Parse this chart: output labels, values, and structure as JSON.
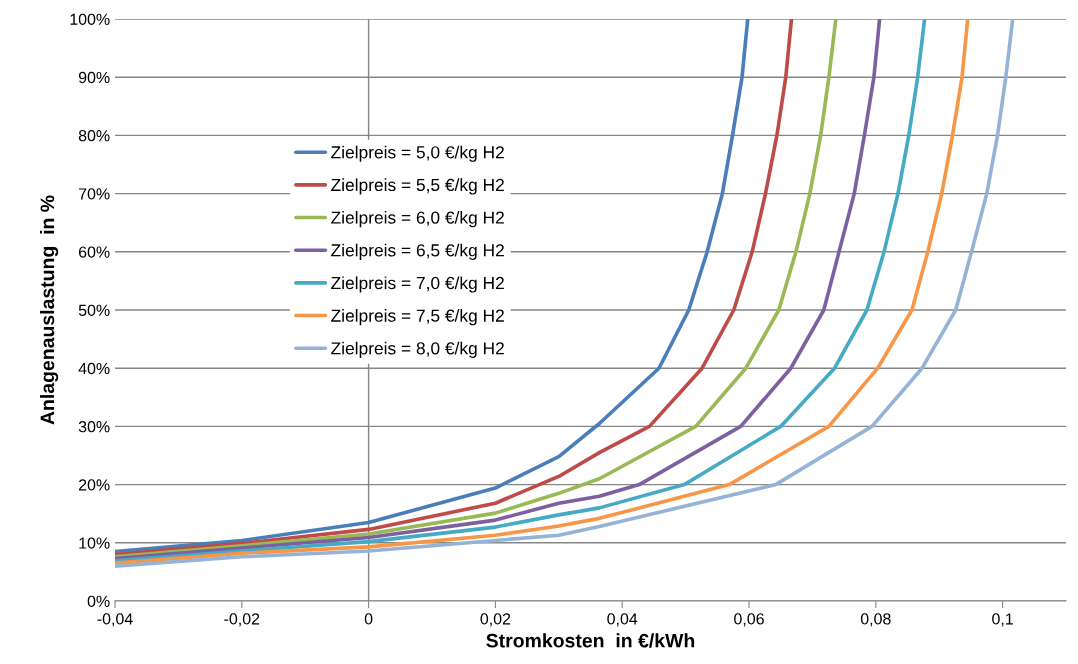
{
  "chart_data": {
    "type": "line",
    "xlabel": "Stromkosten  in €/kWh",
    "ylabel": "Anlagenauslastung  in %",
    "xlim": [
      -0.04,
      0.11
    ],
    "xticks": [
      {
        "value": -0.04,
        "label": "-0,04"
      },
      {
        "value": -0.02,
        "label": "-0,02"
      },
      0,
      {
        "value": 0.02,
        "label": "0,02"
      },
      {
        "value": 0.04,
        "label": "0,04"
      },
      {
        "value": 0.06,
        "label": "0,06"
      },
      {
        "value": 0.08,
        "label": "0,08"
      },
      {
        "value": 0.1,
        "label": "0,1"
      }
    ],
    "ylim": [
      0,
      100
    ],
    "yticks": [
      {
        "value": 0,
        "label": "0%"
      },
      {
        "value": 10,
        "label": "10%"
      },
      {
        "value": 20,
        "label": "20%"
      },
      {
        "value": 30,
        "label": "30%"
      },
      {
        "value": 40,
        "label": "40%"
      },
      {
        "value": 50,
        "label": "50%"
      },
      {
        "value": 60,
        "label": "60%"
      },
      {
        "value": 70,
        "label": "70%"
      },
      {
        "value": 80,
        "label": "80%"
      },
      {
        "value": 90,
        "label": "90%"
      },
      {
        "value": 100,
        "label": "100%"
      }
    ],
    "grid": "y",
    "legend": "center",
    "marker": "none",
    "line_style": "solid",
    "ref_lines": [
      {
        "axis": "x",
        "value": 0,
        "color": "#868686"
      }
    ],
    "series": [
      {
        "name": "Zielpreis = 5,0 €/kg H2",
        "color": "#4a7ebb",
        "x": [
          -0.04,
          -0.02,
          0,
          0.02,
          0.03,
          0.0364,
          0.0458,
          0.0505,
          0.0534,
          0.0558,
          0.0574,
          0.0589,
          0.0598
        ],
        "values": [
          8.5,
          10.4,
          13.5,
          19.4,
          24.8,
          30.5,
          40,
          50,
          60,
          70,
          80,
          90,
          100
        ]
      },
      {
        "name": "Zielpreis = 5,5 €/kg H2",
        "color": "#be4b48",
        "x": [
          -0.04,
          -0.02,
          0,
          0.02,
          0.03,
          0.0364,
          0.0443,
          0.0526,
          0.0576,
          0.0605,
          0.0626,
          0.0644,
          0.0658,
          0.0667
        ],
        "values": [
          8.0,
          9.9,
          12.3,
          16.8,
          21.4,
          25.5,
          30,
          40,
          50,
          60,
          70,
          80,
          90,
          100
        ]
      },
      {
        "name": "Zielpreis = 6,0 €/kg H2",
        "color": "#98b954",
        "x": [
          -0.04,
          -0.02,
          0,
          0.02,
          0.03,
          0.0364,
          0.0516,
          0.0595,
          0.0647,
          0.0674,
          0.0696,
          0.0713,
          0.0726,
          0.0737
        ],
        "values": [
          7.6,
          9.5,
          11.5,
          15.1,
          18.5,
          21,
          30,
          40,
          50,
          60,
          70,
          80,
          90,
          100
        ]
      },
      {
        "name": "Zielpreis = 6,5 €/kg H2",
        "color": "#7d60a0",
        "x": [
          -0.04,
          -0.02,
          0,
          0.02,
          0.03,
          0.0364,
          0.0427,
          0.0587,
          0.0666,
          0.0718,
          0.0742,
          0.0766,
          0.0782,
          0.0797,
          0.0806
        ],
        "values": [
          7.3,
          9.1,
          10.9,
          13.9,
          16.8,
          18,
          20,
          30,
          40,
          50,
          60,
          70,
          80,
          90,
          100
        ]
      },
      {
        "name": "Zielpreis = 7,0 €/kg H2",
        "color": "#46aac5",
        "x": [
          -0.04,
          -0.02,
          0,
          0.02,
          0.03,
          0.0364,
          0.0498,
          0.065,
          0.0735,
          0.0786,
          0.0813,
          0.0835,
          0.0852,
          0.0866,
          0.0877
        ],
        "values": [
          6.9,
          8.6,
          10.2,
          12.7,
          14.8,
          16,
          20,
          30,
          40,
          50,
          60,
          70,
          80,
          90,
          100
        ]
      },
      {
        "name": "Zielpreis = 7,5 €/kg H2",
        "color": "#f79646",
        "x": [
          -0.04,
          -0.02,
          0,
          0.02,
          0.03,
          0.0364,
          0.0569,
          0.0726,
          0.0803,
          0.0857,
          0.0882,
          0.0904,
          0.0921,
          0.0936,
          0.0945
        ],
        "values": [
          6.5,
          8.2,
          9.3,
          11.3,
          12.9,
          14.2,
          20,
          30,
          40,
          50,
          60,
          70,
          80,
          90,
          100
        ]
      },
      {
        "name": "Zielpreis = 8,0 €/kg H2",
        "color": "#95b3d7",
        "x": [
          -0.04,
          -0.02,
          0,
          0.02,
          0.03,
          0.0364,
          0.0642,
          0.0794,
          0.0873,
          0.0926,
          0.0951,
          0.0975,
          0.0992,
          0.1005,
          0.1016
        ],
        "values": [
          6.0,
          7.6,
          8.6,
          10.4,
          11.3,
          12.8,
          20,
          30,
          40,
          50,
          60,
          70,
          80,
          90,
          100
        ]
      }
    ]
  }
}
